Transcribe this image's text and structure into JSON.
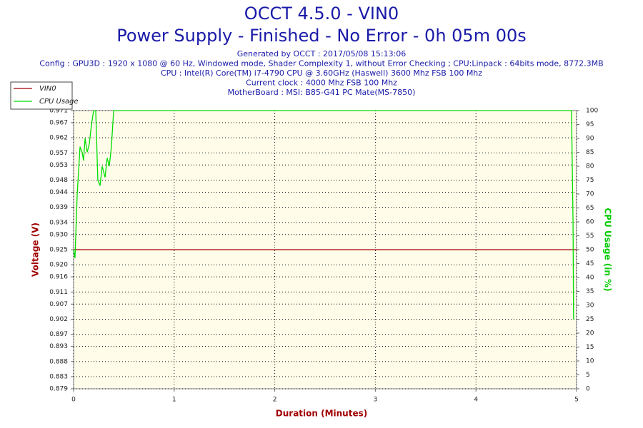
{
  "chart_data": {
    "type": "line",
    "title": "OCCT 4.5.0 - VIN0",
    "subtitle": "Power Supply - Finished - No Error - 0h 05m 00s",
    "header_lines": [
      "Generated by OCCT : 2017/05/08 15:13:06",
      "Config : GPU3D : 1920 x 1080 @ 60 Hz, Windowed mode, Shader Complexity 1, without Error Checking ; CPU:Linpack : 64bits mode, 8772.3MB",
      "CPU : Intel(R) Core(TM) i7-4790 CPU @ 3.60GHz (Haswell) 3600 Mhz FSB 100 Mhz",
      "Current clock : 4000 Mhz FSB 100 Mhz",
      "MotherBoard : MSI: B85-G41 PC Mate(MS-7850)"
    ],
    "x_label": "Duration (Minutes)",
    "y_label": "Voltage (V)",
    "y2_label": "CPU Usage (in %)",
    "xlim": [
      0,
      5
    ],
    "xticks": [
      0,
      1,
      2,
      3,
      4,
      5
    ],
    "ylim": [
      0.879,
      0.971
    ],
    "yticks": [
      0.879,
      0.883,
      0.888,
      0.893,
      0.897,
      0.902,
      0.907,
      0.911,
      0.916,
      {
        "value": 0.92,
        "label": "0.920"
      },
      0.925,
      {
        "value": 0.93,
        "label": "0.930"
      },
      0.934,
      0.939,
      0.944,
      0.948,
      0.953,
      0.957,
      0.962,
      0.967,
      0.971
    ],
    "y2lim": [
      0,
      100
    ],
    "y2ticks": [
      0,
      5,
      10,
      15,
      20,
      25,
      30,
      35,
      40,
      45,
      50,
      55,
      60,
      65,
      70,
      75,
      80,
      85,
      90,
      95,
      100
    ],
    "grid": true,
    "legend": "top-left",
    "series": [
      {
        "name": "VIN0",
        "color": "#a00000",
        "x": [
          0,
          5
        ],
        "values": [
          0.925,
          0.925
        ]
      },
      {
        "name": "CPU Usage",
        "color": "#00dd00",
        "axis": "y2",
        "x": [
          0,
          0.014,
          0.036,
          0.064,
          0.085,
          0.099,
          0.114,
          0.135,
          0.156,
          0.178,
          0.199,
          0.22,
          0.241,
          0.263,
          0.284,
          0.313,
          0.334,
          0.355,
          0.376,
          0.398,
          4.95,
          4.965,
          4.97
        ],
        "values": [
          50,
          47,
          70,
          87,
          85,
          82,
          90,
          85,
          88,
          95,
          100,
          100,
          75,
          73,
          80,
          76,
          83,
          80,
          87,
          100,
          100,
          60,
          25
        ]
      }
    ]
  }
}
